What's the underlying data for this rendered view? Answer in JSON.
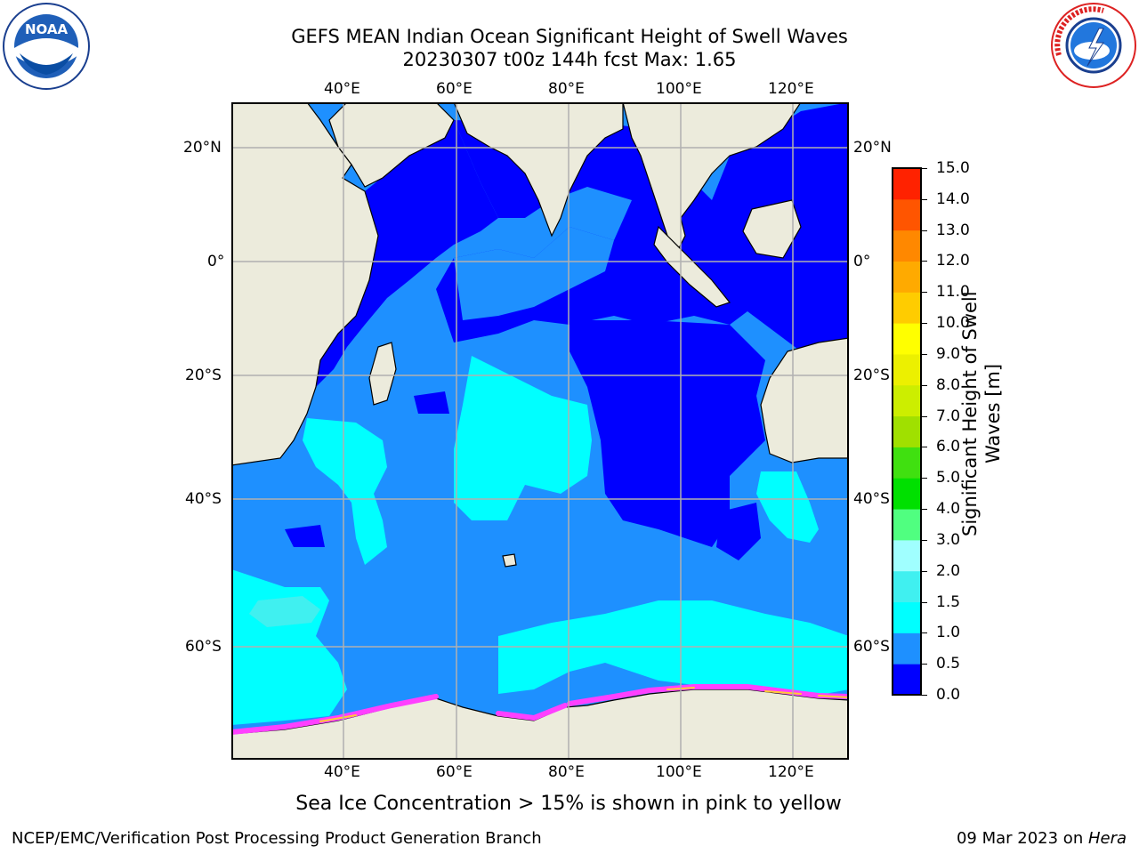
{
  "title": {
    "line1": "GEFS MEAN Indian Ocean Significant Height of Swell Waves",
    "line2": "20230307 t00z 144h fcst   Max: 1.65"
  },
  "logos": {
    "left": {
      "text": "NOAA",
      "icon": "noaa-logo-icon",
      "ring_text": "NATIONAL OCEANIC AND ATMOSPHERIC ADMINISTRATION · U.S. DEPARTMENT OF COMMERCE"
    },
    "right": {
      "icon": "national-weather-service-logo-icon",
      "ring_text": "NATIONAL WEATHER SERVICE"
    }
  },
  "map": {
    "lon_ticks": [
      "40°E",
      "60°E",
      "80°E",
      "100°E",
      "120°E"
    ],
    "lat_ticks": [
      "20°N",
      "0°",
      "20°S",
      "40°S",
      "60°S"
    ],
    "lon_range": [
      20,
      130
    ],
    "lat_range": [
      30,
      -80
    ],
    "ocean_levels_shown": [
      "0.0-0.5",
      "0.5-1.0",
      "1.0-1.5",
      "1.5-2.0"
    ],
    "colors": {
      "land": "#ecebdc",
      "level_0": "#0000ff",
      "level_1": "#1e90ff",
      "level_2": "#00ffff",
      "level_3": "#40f0f0",
      "sea_ice_pink": "#ff40ff",
      "sea_ice_yellow": "#ffcc33",
      "grid": "#b0b0b0"
    }
  },
  "colorbar": {
    "title": "Significant Height of Swell Waves [m]",
    "labels": [
      "15.0",
      "14.0",
      "13.0",
      "12.0",
      "11.0",
      "10.0",
      "9.0",
      "8.0",
      "7.0",
      "6.0",
      "5.0",
      "4.0",
      "3.0",
      "2.0",
      "1.5",
      "1.0",
      "0.5",
      "0.0"
    ],
    "bins": [
      {
        "range": "0.0-0.5",
        "color": "#0000ff"
      },
      {
        "range": "0.5-1.0",
        "color": "#1e90ff"
      },
      {
        "range": "1.0-1.5",
        "color": "#00ffff"
      },
      {
        "range": "1.5-2.0",
        "color": "#40f0f0"
      },
      {
        "range": "2.0-3.0",
        "color": "#a0ffff"
      },
      {
        "range": "3.0-4.0",
        "color": "#50ff80"
      },
      {
        "range": "4.0-5.0",
        "color": "#00e000"
      },
      {
        "range": "5.0-6.0",
        "color": "#40e010"
      },
      {
        "range": "6.0-7.0",
        "color": "#a0e000"
      },
      {
        "range": "7.0-8.0",
        "color": "#ccee00"
      },
      {
        "range": "8.0-9.0",
        "color": "#ecf000"
      },
      {
        "range": "9.0-10.0",
        "color": "#ffff00"
      },
      {
        "range": "10.0-11.0",
        "color": "#ffcc00"
      },
      {
        "range": "11.0-12.0",
        "color": "#ffaa00"
      },
      {
        "range": "12.0-13.0",
        "color": "#ff8800"
      },
      {
        "range": "13.0-14.0",
        "color": "#ff5500"
      },
      {
        "range": "14.0-15.0",
        "color": "#ff2200"
      },
      {
        "range": "15.0+",
        "color": "#ff0000"
      }
    ]
  },
  "caption": "Sea Ice Concentration > 15% is shown in pink to yellow",
  "footer": {
    "left": "NCEP/EMC/Verification Post Processing Product Generation Branch",
    "right_date": "09 Mar 2023 on ",
    "right_host": "Hera"
  }
}
